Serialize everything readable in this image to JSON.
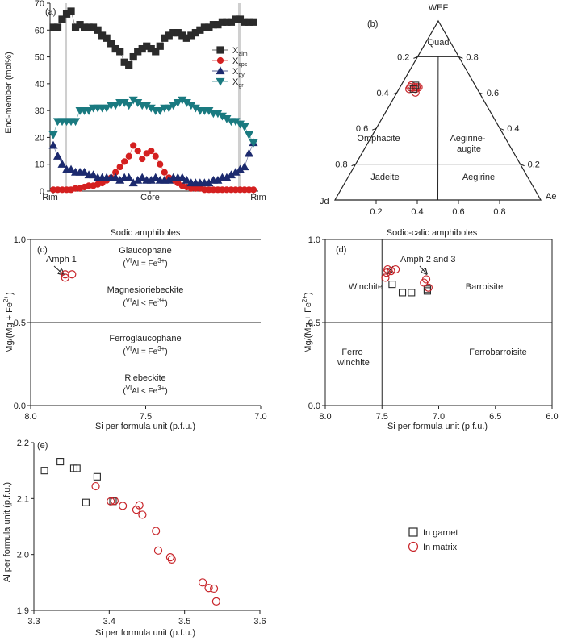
{
  "colors": {
    "almandine": "#2b2b2b",
    "spessartine": "#d42020",
    "pyrope": "#1c2a6e",
    "grossular": "#1a7a80",
    "garnet_marker": "#2b2b2b",
    "matrix_marker": "#c8252a"
  },
  "chart_data": [
    {
      "id": "a",
      "type": "line",
      "panel_label": "(a)",
      "ylabel": "End-member (mol%)",
      "ylim": [
        0,
        70
      ],
      "yticks": [
        0,
        10,
        20,
        30,
        40,
        50,
        60,
        70
      ],
      "xtick_labels": {
        "left": "Rim",
        "center": "Core",
        "right": "Rim"
      },
      "rim_lines_at_index": [
        3,
        42
      ],
      "legend_placement": "right",
      "series": [
        {
          "name_main": "X",
          "name_sub": "alm",
          "marker": "square",
          "color": "#2b2b2b",
          "values": [
            61,
            61,
            64,
            66,
            67,
            61,
            62,
            61,
            61,
            61,
            60,
            58,
            57,
            55,
            53,
            52,
            48,
            47,
            50,
            52,
            53,
            54,
            53,
            52,
            54,
            57,
            58,
            59,
            59,
            58,
            57,
            58,
            59,
            60,
            61,
            61,
            62,
            62,
            63,
            63,
            63,
            64,
            64,
            63,
            63,
            63
          ]
        },
        {
          "name_main": "X",
          "name_sub": "sps",
          "marker": "circle",
          "color": "#d42020",
          "values": [
            0.5,
            0.5,
            0.5,
            0.5,
            0.5,
            1,
            1,
            1.5,
            2,
            2,
            2.5,
            3,
            4,
            5,
            7,
            9,
            11,
            13,
            17,
            15,
            12,
            14,
            15,
            13,
            10,
            7,
            5,
            4,
            3,
            2,
            1.5,
            1,
            1,
            1,
            0.5,
            0.5,
            0.5,
            0.5,
            0.5,
            0.5,
            0.5,
            0.5,
            0.5,
            0.5,
            0.5,
            0.5
          ]
        },
        {
          "name_main": "X",
          "name_sub": "py",
          "marker": "triangle-up",
          "color": "#1c2a6e",
          "values": [
            17,
            13,
            10,
            8,
            8,
            7,
            7,
            7,
            6,
            6,
            5,
            5,
            5,
            5,
            5,
            4,
            5,
            5,
            3,
            4,
            5,
            4,
            4,
            5,
            4,
            4,
            4,
            5,
            5,
            5,
            4,
            3,
            3,
            3,
            3,
            3,
            4,
            4,
            5,
            5,
            6,
            7,
            8,
            9,
            14,
            18
          ]
        },
        {
          "name_main": "X",
          "name_sub": "gr",
          "marker": "triangle-down",
          "color": "#1a7a80",
          "values": [
            21,
            26,
            26,
            26,
            26,
            26,
            30,
            30,
            30,
            31,
            31,
            31,
            31,
            32,
            32,
            33,
            33,
            32,
            34,
            33,
            32,
            32,
            31,
            30,
            30,
            31,
            31,
            32,
            33,
            34,
            33,
            32,
            31,
            30,
            30,
            30,
            29,
            29,
            28,
            27,
            26,
            26,
            25,
            24,
            21,
            18
          ]
        }
      ]
    },
    {
      "id": "b",
      "type": "scatter",
      "subtype": "ternary",
      "panel_label": "(b)",
      "vertices": {
        "top": "WEF",
        "left": "Jd",
        "right": "Ae"
      },
      "axis_ticks": [
        "0.2",
        "0.4",
        "0.6",
        "0.8"
      ],
      "fields": [
        "Quad",
        "Omphacite",
        "Aegirine-\naugite",
        "Jadeite",
        "Aegirine"
      ],
      "points": [
        {
          "jd": 0.31,
          "ae": 0.05,
          "wef": 0.64
        },
        {
          "jd": 0.33,
          "ae": 0.05,
          "wef": 0.62
        },
        {
          "jd": 0.32,
          "ae": 0.05,
          "wef": 0.63
        },
        {
          "jd": 0.29,
          "ae": 0.08,
          "wef": 0.63
        },
        {
          "jd": 0.3,
          "ae": 0.08,
          "wef": 0.62
        },
        {
          "jd": 0.3,
          "ae": 0.07,
          "wef": 0.63
        },
        {
          "jd": 0.28,
          "ae": 0.09,
          "wef": 0.63
        },
        {
          "jd": 0.31,
          "ae": 0.09,
          "wef": 0.6
        }
      ],
      "garnet_points": [
        {
          "jd": 0.29,
          "ae": 0.07,
          "wef": 0.64
        },
        {
          "jd": 0.31,
          "ae": 0.07,
          "wef": 0.62
        }
      ]
    },
    {
      "id": "c",
      "type": "scatter",
      "panel_label": "(c)",
      "title": "Sodic amphiboles",
      "xlabel": "Si per formula unit (p.f.u.)",
      "ylabel": "Mg/(Mg + Fe",
      "ylabel_sup": "2+",
      "ylabel_end": ")",
      "xlim": [
        8.0,
        7.0
      ],
      "ylim": [
        0.0,
        1.0
      ],
      "xticks": [
        "8.0",
        "7.5",
        "7.0"
      ],
      "yticks": [
        "0.0",
        "0.5",
        "1.0"
      ],
      "fields": [
        {
          "name": "Glaucophane",
          "cond_pre": "(",
          "cond_sup": "VI",
          "cond_main": "Al = Fe",
          "cond_sup2": "3+",
          "cond_post": ")"
        },
        {
          "name": "Magnesioriebeckite",
          "cond_pre": "(",
          "cond_sup": "VI",
          "cond_main": "Al < Fe",
          "cond_sup2": "3+",
          "cond_post": ")"
        },
        {
          "name": "Ferroglaucophane",
          "cond_pre": "(",
          "cond_sup": "VI",
          "cond_main": "Al = Fe",
          "cond_sup2": "3+",
          "cond_post": ")"
        },
        {
          "name": "Riebeckite",
          "cond_pre": "(",
          "cond_sup": "VI",
          "cond_main": "Al < Fe",
          "cond_sup2": "3+",
          "cond_post": ")"
        }
      ],
      "annotation": "Amph 1",
      "matrix_points": [
        {
          "x": 7.85,
          "y": 0.79
        },
        {
          "x": 7.82,
          "y": 0.79
        },
        {
          "x": 7.85,
          "y": 0.77
        }
      ]
    },
    {
      "id": "d",
      "type": "scatter",
      "panel_label": "(d)",
      "title": "Sodic-calic amphiboles",
      "xlabel": "Si per formula unit (p.f.u.)",
      "ylabel": "Mg/(Mg + Fe",
      "ylabel_sup": "2+",
      "ylabel_end": ")",
      "xlim": [
        8.0,
        6.0
      ],
      "ylim": [
        0.0,
        1.0
      ],
      "xticks": [
        "8.0",
        "7.5",
        "7.0",
        "6.5",
        "6.0"
      ],
      "yticks": [
        "0.0",
        "0.5",
        "1.0"
      ],
      "fields": [
        "Winchite",
        "Barroisite",
        "Ferro\nwinchite",
        "Ferrobarroisite"
      ],
      "annotation": "Amph 2 and 3",
      "garnet_points": [
        {
          "x": 7.41,
          "y": 0.73
        },
        {
          "x": 7.32,
          "y": 0.68
        },
        {
          "x": 7.24,
          "y": 0.68
        },
        {
          "x": 7.1,
          "y": 0.7
        },
        {
          "x": 7.1,
          "y": 0.69
        }
      ],
      "matrix_points": [
        {
          "x": 7.45,
          "y": 0.82
        },
        {
          "x": 7.42,
          "y": 0.81
        },
        {
          "x": 7.38,
          "y": 0.82
        },
        {
          "x": 7.46,
          "y": 0.8
        },
        {
          "x": 7.47,
          "y": 0.77
        },
        {
          "x": 7.11,
          "y": 0.76
        },
        {
          "x": 7.13,
          "y": 0.74
        },
        {
          "x": 7.09,
          "y": 0.71
        }
      ]
    },
    {
      "id": "e",
      "type": "scatter",
      "panel_label": "(e)",
      "xlabel": "Si per formula unit (p.f.u.)",
      "ylabel": "Al per formula unit (p.f.u.)",
      "xlim": [
        3.3,
        3.6
      ],
      "ylim": [
        1.9,
        2.2
      ],
      "xticks": [
        "3.3",
        "3.4",
        "3.5",
        "3.6"
      ],
      "yticks": [
        "1.9",
        "2.0",
        "2.1",
        "2.2"
      ],
      "legend": {
        "placement": "right",
        "garnet_label": "In garnet",
        "matrix_label": "In matrix"
      },
      "garnet_points": [
        {
          "x": 3.314,
          "y": 2.15
        },
        {
          "x": 3.335,
          "y": 2.166
        },
        {
          "x": 3.353,
          "y": 2.154
        },
        {
          "x": 3.357,
          "y": 2.154
        },
        {
          "x": 3.384,
          "y": 2.139
        },
        {
          "x": 3.369,
          "y": 2.093
        },
        {
          "x": 3.405,
          "y": 2.095
        }
      ],
      "matrix_points": [
        {
          "x": 3.382,
          "y": 2.122
        },
        {
          "x": 3.402,
          "y": 2.095
        },
        {
          "x": 3.407,
          "y": 2.096
        },
        {
          "x": 3.418,
          "y": 2.087
        },
        {
          "x": 3.436,
          "y": 2.08
        },
        {
          "x": 3.44,
          "y": 2.088
        },
        {
          "x": 3.444,
          "y": 2.071
        },
        {
          "x": 3.462,
          "y": 2.042
        },
        {
          "x": 3.465,
          "y": 2.007
        },
        {
          "x": 3.481,
          "y": 1.995
        },
        {
          "x": 3.483,
          "y": 1.991
        },
        {
          "x": 3.524,
          "y": 1.95
        },
        {
          "x": 3.532,
          "y": 1.94
        },
        {
          "x": 3.539,
          "y": 1.939
        },
        {
          "x": 3.542,
          "y": 1.916
        }
      ]
    }
  ]
}
